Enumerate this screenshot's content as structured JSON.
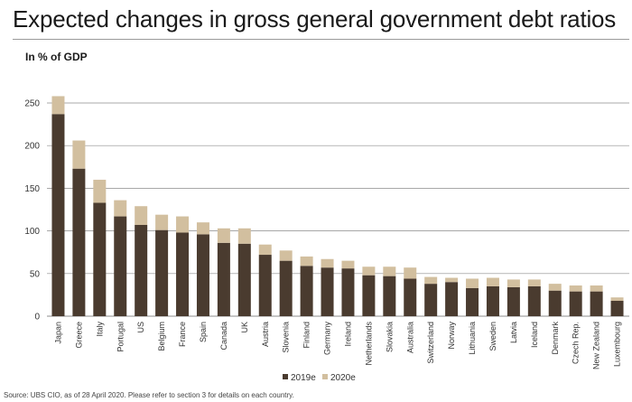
{
  "title": "Expected changes in gross general government debt ratios",
  "subtitle": "In % of GDP",
  "source": "Source: UBS CIO, as of 28 April 2020. Please refer to section 3 for details on each country.",
  "colors": {
    "2019e": "#4a3b2f",
    "2020e": "#d2bf9f",
    "grid": "#8c8c8c"
  },
  "chart_data": {
    "type": "bar",
    "stacked": true,
    "categories": [
      "Japan",
      "Greece",
      "Italy",
      "Portugal",
      "US",
      "Belgium",
      "France",
      "Spain",
      "Canada",
      "UK",
      "Austria",
      "Slovenia",
      "Finland",
      "Germany",
      "Ireland",
      "Netherlands",
      "Slovakia",
      "Australia",
      "Switzerland",
      "Norway",
      "Lithuania",
      "Sweden",
      "Latvia",
      "Iceland",
      "Denmark",
      "Czech Rep.",
      "New Zealand",
      "Luxembourg"
    ],
    "series": [
      {
        "name": "2019e",
        "values": [
          237,
          173,
          133,
          117,
          107,
          101,
          98,
          96,
          86,
          85,
          72,
          65,
          59,
          57,
          56,
          48,
          47,
          44,
          38,
          40,
          33,
          35,
          34,
          35,
          30,
          29,
          29,
          18
        ]
      },
      {
        "name": "2020e",
        "values": [
          21,
          33,
          27,
          19,
          22,
          18,
          19,
          14,
          17,
          18,
          12,
          12,
          11,
          10,
          9,
          10,
          11,
          13,
          8,
          5,
          11,
          10,
          9,
          8,
          8,
          7,
          7,
          4
        ]
      }
    ],
    "ylim": [
      0,
      250
    ],
    "yticks": [
      0,
      50,
      100,
      150,
      200,
      250
    ],
    "grid": true,
    "legend": "bottom-center"
  }
}
